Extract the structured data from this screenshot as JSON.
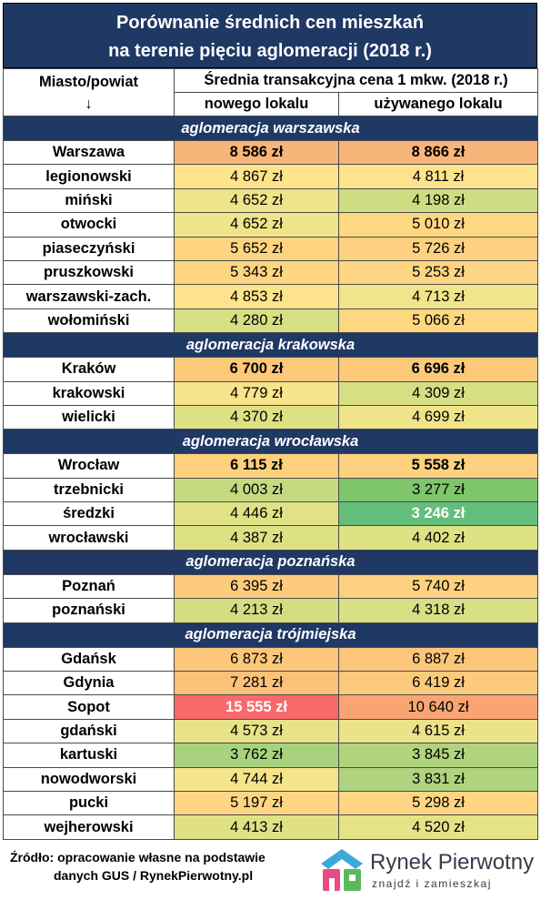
{
  "title": {
    "line1": "Porównanie średnich cen mieszkań",
    "line2": "na terenie pięciu aglomeracji (2018 r.)"
  },
  "header": {
    "col1": "Miasto/powiat",
    "col1_arrow": "↓",
    "group": "Średnia transakcyjna cena 1 mkw. (2018 r.)",
    "col2": "nowego lokalu",
    "col3": "używanego lokalu"
  },
  "sections": [
    {
      "name": "aglomeracja warszawska",
      "rows": [
        {
          "name": "Warszawa",
          "city": true,
          "new": "8 586 zł",
          "used": "8 866 zł",
          "new_color": "#f8b579",
          "used_color": "#f8b579"
        },
        {
          "name": "legionowski",
          "new": "4 867 zł",
          "used": "4 811 zł",
          "new_color": "#fde38b",
          "used_color": "#fde38b"
        },
        {
          "name": "miński",
          "new": "4 652 zł",
          "used": "4 198 zł",
          "new_color": "#eee48a",
          "used_color": "#cfdd82"
        },
        {
          "name": "otwocki",
          "new": "4 652 zł",
          "used": "5 010 zł",
          "new_color": "#eee48a",
          "used_color": "#fed880"
        },
        {
          "name": "piaseczyński",
          "new": "5 652 zł",
          "used": "5 726 zł",
          "new_color": "#fed481",
          "used_color": "#fdd17f"
        },
        {
          "name": "pruszkowski",
          "new": "5 343 zł",
          "used": "5 253 zł",
          "new_color": "#fed682",
          "used_color": "#fed582"
        },
        {
          "name": "warszawski-zach.",
          "new": "4 853 zł",
          "used": "4 713 zł",
          "new_color": "#fde38b",
          "used_color": "#f2e48a"
        },
        {
          "name": "wołomiński",
          "new": "4 280 zł",
          "used": "5 066 zł",
          "new_color": "#d6df84",
          "used_color": "#fed880"
        }
      ]
    },
    {
      "name": "aglomeracja krakowska",
      "rows": [
        {
          "name": "Kraków",
          "city": true,
          "new": "6 700 zł",
          "used": "6 696 zł",
          "new_color": "#fcc97a",
          "used_color": "#fcc97a"
        },
        {
          "name": "krakowski",
          "new": "4 779 zł",
          "used": "4 309 zł",
          "new_color": "#f8e48b",
          "used_color": "#d7df84"
        },
        {
          "name": "wielicki",
          "new": "4 370 zł",
          "used": "4 699 zł",
          "new_color": "#dde184",
          "used_color": "#f0e48a"
        }
      ]
    },
    {
      "name": "aglomeracja wrocławska",
      "rows": [
        {
          "name": "Wrocław",
          "city": true,
          "new": "6 115 zł",
          "used": "5 558 zł",
          "new_color": "#fdd07c",
          "used_color": "#fdd17f"
        },
        {
          "name": "trzebnicki",
          "new": "4 003 zł",
          "used": "3 277 zł",
          "new_color": "#c4d980",
          "used_color": "#7ec56c"
        },
        {
          "name": "średzki",
          "new": "4 446 zł",
          "used": "3 246 zł",
          "new_color": "#e1e286",
          "used_color": "#63be7b",
          "used_bold": true,
          "used_white": true
        },
        {
          "name": "wrocławski",
          "new": "4 387 zł",
          "used": "4 402 zł",
          "new_color": "#dde184",
          "used_color": "#dfe185"
        }
      ]
    },
    {
      "name": "aglomeracja poznańska",
      "rows": [
        {
          "name": "Poznań",
          "city": true,
          "new": "6 395 zł",
          "used": "5 740 zł",
          "new_color": "#fdcb7c",
          "used_color": "#fdd17f",
          "plain": true
        },
        {
          "name": "poznański",
          "new": "4 213 zł",
          "used": "4 318 zł",
          "new_color": "#d3de83",
          "used_color": "#d8df84"
        }
      ]
    },
    {
      "name": "aglomeracja trójmiejska",
      "rows": [
        {
          "name": "Gdańsk",
          "city": true,
          "new": "6 873 zł",
          "used": "6 887 zł",
          "new_color": "#fcc77a",
          "used_color": "#fcc67a",
          "plain": true
        },
        {
          "name": "Gdynia",
          "city": true,
          "new": "7 281 zł",
          "used": "6 419 zł",
          "new_color": "#fbc178",
          "used_color": "#fcca7b",
          "plain": true
        },
        {
          "name": "Sopot",
          "city": true,
          "new": "15 555 zł",
          "used": "10 640 zł",
          "new_color": "#f8696b",
          "used_color": "#f9a472",
          "new_bold": true,
          "new_white": true,
          "plain": true
        },
        {
          "name": "gdański",
          "new": "4 573 zł",
          "used": "4 615 zł",
          "new_color": "#e8e388",
          "used_color": "#ebe389"
        },
        {
          "name": "kartuski",
          "new": "3 762 zł",
          "used": "3 845 zł",
          "new_color": "#a8d27d",
          "used_color": "#b0d47e"
        },
        {
          "name": "nowodworski",
          "new": "4 744 zł",
          "used": "3 831 zł",
          "new_color": "#f6e48a",
          "used_color": "#afd37e"
        },
        {
          "name": "pucki",
          "new": "5 197 zł",
          "used": "5 298 zł",
          "new_color": "#fed683",
          "used_color": "#fed582"
        },
        {
          "name": "wejherowski",
          "new": "4 413 zł",
          "used": "4 520 zł",
          "new_color": "#e0e185",
          "used_color": "#e6e287"
        }
      ]
    }
  ],
  "footer": {
    "source_line1": "Źródło: opracowanie własne na podstawie",
    "source_line2": "danych GUS / RynekPierwotny.pl",
    "brand": "Rynek Pierwotny",
    "tagline": "znajdź i zamieszkaj"
  }
}
